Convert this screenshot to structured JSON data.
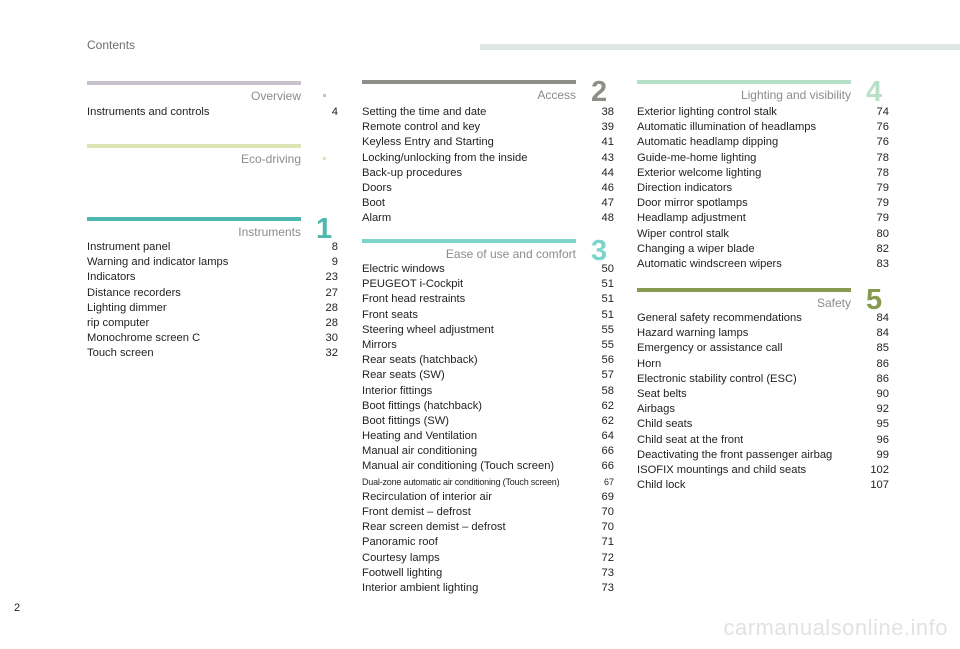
{
  "header": {
    "title": "Contents"
  },
  "page_number": "2",
  "watermark": "carmanualsonline.info",
  "colors": {
    "overview": "#c7c2cc",
    "eco": "#dde6b2",
    "instruments": "#4fb8ae",
    "access": "#8e8e88",
    "ease": "#7dd4c8",
    "lighting": "#b8e0c8",
    "safety": "#889a50"
  },
  "sections": {
    "overview": {
      "name": "Overview",
      "items": [
        {
          "label": "Instruments and controls",
          "page": "4"
        }
      ]
    },
    "eco": {
      "name": "Eco-driving",
      "items": []
    },
    "instruments": {
      "name": "Instruments",
      "number": "1",
      "items": [
        {
          "label": "Instrument panel",
          "page": "8"
        },
        {
          "label": "Warning and indicator lamps",
          "page": "9"
        },
        {
          "label": "Indicators",
          "page": "23"
        },
        {
          "label": "Distance recorders",
          "page": "27"
        },
        {
          "label": "Lighting dimmer",
          "page": "28"
        },
        {
          "label": "rip computer",
          "page": "28"
        },
        {
          "label": "Monochrome screen C",
          "page": "30"
        },
        {
          "label": "Touch screen",
          "page": "32"
        }
      ]
    },
    "access": {
      "name": "Access",
      "number": "2",
      "items": [
        {
          "label": "Setting the time and date",
          "page": "38"
        },
        {
          "label": "Remote control and key",
          "page": "39"
        },
        {
          "label": "Keyless Entry and Starting",
          "page": "41"
        },
        {
          "label": "Locking/unlocking from the inside",
          "page": "43"
        },
        {
          "label": "Back-up procedures",
          "page": "44"
        },
        {
          "label": "Doors",
          "page": "46"
        },
        {
          "label": "Boot",
          "page": "47"
        },
        {
          "label": "Alarm",
          "page": "48"
        }
      ]
    },
    "ease": {
      "name": "Ease of use and comfort",
      "number": "3",
      "items": [
        {
          "label": "Electric windows",
          "page": "50"
        },
        {
          "label": "PEUGEOT i-Cockpit",
          "page": "51"
        },
        {
          "label": "Front head restraints",
          "page": "51"
        },
        {
          "label": "Front seats",
          "page": "51"
        },
        {
          "label": "Steering wheel adjustment",
          "page": "55"
        },
        {
          "label": "Mirrors",
          "page": "55"
        },
        {
          "label": "Rear seats (hatchback)",
          "page": "56"
        },
        {
          "label": "Rear seats (SW)",
          "page": "57"
        },
        {
          "label": "Interior fittings",
          "page": "58"
        },
        {
          "label": "Boot fittings (hatchback)",
          "page": "62"
        },
        {
          "label": "Boot fittings (SW)",
          "page": "62"
        },
        {
          "label": "Heating and Ventilation",
          "page": "64"
        },
        {
          "label": "Manual air conditioning",
          "page": "66"
        },
        {
          "label": "Manual air conditioning (Touch screen)",
          "page": "66"
        },
        {
          "label": "Dual-zone automatic air conditioning (Touch screen)",
          "page": "67"
        },
        {
          "label": "Recirculation of interior air",
          "page": "69"
        },
        {
          "label": "Front demist – defrost",
          "page": "70"
        },
        {
          "label": "Rear screen demist – defrost",
          "page": "70"
        },
        {
          "label": "Panoramic roof",
          "page": "71"
        },
        {
          "label": "Courtesy lamps",
          "page": "72"
        },
        {
          "label": "Footwell lighting",
          "page": "73"
        },
        {
          "label": "Interior ambient lighting",
          "page": "73"
        }
      ]
    },
    "lighting": {
      "name": "Lighting and visibility",
      "number": "4",
      "items": [
        {
          "label": "Exterior lighting control stalk",
          "page": "74"
        },
        {
          "label": "Automatic illumination of headlamps",
          "page": "76"
        },
        {
          "label": "Automatic headlamp dipping",
          "page": "76"
        },
        {
          "label": "Guide-me-home lighting",
          "page": "78"
        },
        {
          "label": "Exterior welcome lighting",
          "page": "78"
        },
        {
          "label": "Direction indicators",
          "page": "79"
        },
        {
          "label": "Door mirror spotlamps",
          "page": "79"
        },
        {
          "label": "Headlamp adjustment",
          "page": "79"
        },
        {
          "label": "Wiper control stalk",
          "page": "80"
        },
        {
          "label": "Changing a wiper blade",
          "page": "82"
        },
        {
          "label": "Automatic windscreen wipers",
          "page": "83"
        }
      ]
    },
    "safety": {
      "name": "Safety",
      "number": "5",
      "items": [
        {
          "label": "General safety recommendations",
          "page": "84"
        },
        {
          "label": "Hazard warning lamps",
          "page": "84"
        },
        {
          "label": "Emergency or assistance call",
          "page": "85"
        },
        {
          "label": "Horn",
          "page": "86"
        },
        {
          "label": "Electronic stability control (ESC)",
          "page": "86"
        },
        {
          "label": "Seat belts",
          "page": "90"
        },
        {
          "label": "Airbags",
          "page": "92"
        },
        {
          "label": "Child seats",
          "page": "95"
        },
        {
          "label": "Child seat at the front",
          "page": "96"
        },
        {
          "label": "Deactivating the front passenger airbag",
          "page": "99"
        },
        {
          "label": "ISOFIX mountings and child seats",
          "page": "102"
        },
        {
          "label": "Child lock",
          "page": "107"
        }
      ]
    }
  }
}
